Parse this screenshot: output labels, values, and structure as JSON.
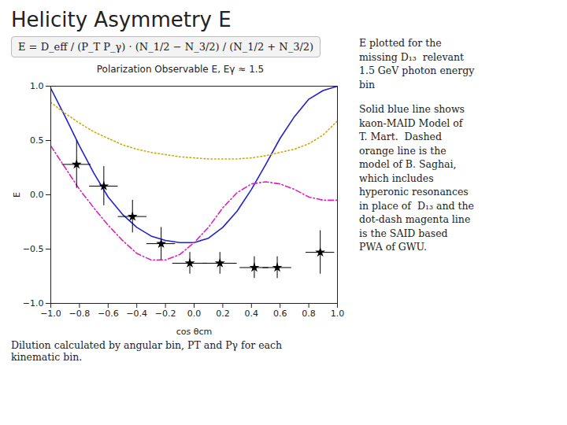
{
  "chart_data": {
    "type": "line",
    "title": "Helicity Asymmetry E",
    "subtitle": "Polarization Observable E, Eγ ≈ 1.5",
    "x_label": "cos θcm",
    "y_label": "E",
    "annotations": [
      "E = D_eff / (P_T P_γ) · (N_1/2 − N_3/2) / (N_1/2 + N_3/2)",
      "E plotted for the\nmissing D₁₃  relevant\n1.5 GeV photon energy\nbin",
      "Solid blue line shows\nkaon-MAID Model of\nT. Mart.  Dashed\norange line is the\nmodel of B. Saghai,\nwhich includes\nhyperonic resonances\nin place of  D₁₃ and the\ndot-dash magenta line\nis the SAID based\nPWA of GWU.",
      "Dilution calculated by angular bin, PT and Pγ for each\nkinematic bin."
    ],
    "xlim": [
      -1,
      1
    ],
    "ylim": [
      -1,
      1
    ],
    "xticks": [
      {
        "value": -1,
        "label": "−1.0"
      },
      {
        "value": -0.8,
        "label": "−0.8"
      },
      {
        "value": -0.6,
        "label": "−0.6"
      },
      {
        "value": -0.4,
        "label": "−0.4"
      },
      {
        "value": -0.2,
        "label": "−0.2"
      },
      {
        "value": 0,
        "label": "0.0"
      },
      0.2,
      0.4,
      0.6,
      0.8,
      {
        "value": 1,
        "label": "1.0"
      }
    ],
    "yticks": [
      {
        "value": -1,
        "label": "−1.0"
      },
      {
        "value": -0.5,
        "label": "−0.5"
      },
      {
        "value": 0,
        "label": "0.0"
      },
      0.5,
      {
        "value": 1,
        "label": "1.0"
      }
    ],
    "grid": false,
    "series": [
      {
        "type": "line",
        "color": "#2222cc",
        "line_style": "solid",
        "x": [
          -1.0,
          -0.9,
          -0.8,
          -0.7,
          -0.6,
          -0.5,
          -0.4,
          -0.3,
          -0.2,
          -0.1,
          0.0,
          0.1,
          0.2,
          0.3,
          0.4,
          0.5,
          0.6,
          0.7,
          0.8,
          0.9,
          1.0
        ],
        "values": [
          0.98,
          0.72,
          0.45,
          0.2,
          -0.02,
          -0.18,
          -0.3,
          -0.38,
          -0.42,
          -0.44,
          -0.44,
          -0.4,
          -0.3,
          -0.15,
          0.05,
          0.28,
          0.52,
          0.72,
          0.88,
          0.96,
          1.0
        ]
      },
      {
        "type": "line",
        "color": "#ccaa00",
        "line_style": "dotted",
        "x": [
          -1.0,
          -0.9,
          -0.8,
          -0.7,
          -0.6,
          -0.5,
          -0.4,
          -0.3,
          -0.2,
          -0.1,
          0.0,
          0.1,
          0.2,
          0.3,
          0.4,
          0.5,
          0.6,
          0.7,
          0.8,
          0.9,
          1.0
        ],
        "values": [
          0.85,
          0.75,
          0.66,
          0.58,
          0.52,
          0.46,
          0.42,
          0.39,
          0.37,
          0.35,
          0.34,
          0.33,
          0.33,
          0.33,
          0.34,
          0.36,
          0.39,
          0.42,
          0.47,
          0.55,
          0.68
        ]
      },
      {
        "type": "line",
        "color": "#dd22bb",
        "line_style": "dashdot",
        "x": [
          -1.0,
          -0.9,
          -0.8,
          -0.7,
          -0.6,
          -0.5,
          -0.4,
          -0.3,
          -0.2,
          -0.1,
          0.0,
          0.1,
          0.2,
          0.3,
          0.4,
          0.5,
          0.6,
          0.7,
          0.8,
          0.9,
          1.0
        ],
        "values": [
          0.45,
          0.25,
          0.05,
          -0.12,
          -0.28,
          -0.42,
          -0.54,
          -0.6,
          -0.6,
          -0.55,
          -0.44,
          -0.3,
          -0.12,
          0.02,
          0.1,
          0.12,
          0.1,
          0.05,
          -0.02,
          -0.05,
          -0.05
        ]
      },
      {
        "type": "scatter",
        "color": "black",
        "marker": "star",
        "x": [
          -0.82,
          -0.63,
          -0.43,
          -0.23,
          -0.03,
          0.18,
          0.42,
          0.58,
          0.88
        ],
        "values": [
          0.28,
          0.08,
          -0.2,
          -0.45,
          -0.63,
          -0.63,
          -0.67,
          -0.67,
          -0.53
        ],
        "xerr": [
          0.1,
          0.1,
          0.1,
          0.1,
          0.12,
          0.12,
          0.1,
          0.1,
          0.1
        ],
        "yerr": [
          0.22,
          0.18,
          0.15,
          0.15,
          0.1,
          0.1,
          0.1,
          0.1,
          0.2
        ]
      }
    ]
  }
}
